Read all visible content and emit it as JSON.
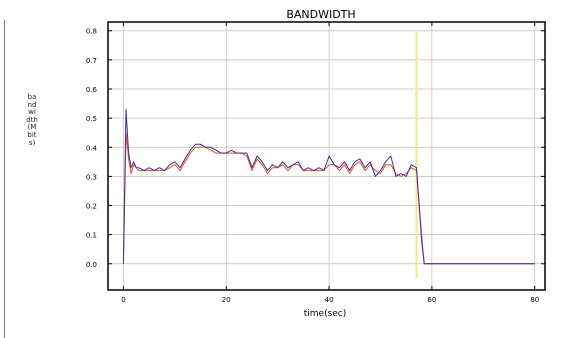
{
  "chart_data": {
    "type": "line",
    "title": "BANDWIDTH",
    "xlabel": "time(sec)",
    "ylabel": "bandwidth(Mbits)",
    "xlim": [
      -3,
      82
    ],
    "ylim": [
      -0.09,
      0.83
    ],
    "xticks": [
      0,
      20,
      40,
      60,
      80
    ],
    "yticks": [
      0.0,
      0.1,
      0.2,
      0.3,
      0.4,
      0.5,
      0.6,
      0.7,
      0.8
    ],
    "xtick_labels": [
      "0",
      "20",
      "40",
      "60",
      "80"
    ],
    "ytick_labels": [
      "0.0",
      "0.1",
      "0.2",
      "0.3",
      "0.4",
      "0.5",
      "0.6",
      "0.7",
      "0.8"
    ],
    "grid": true,
    "legend": "none",
    "series": [
      {
        "color": "#e8511c",
        "x": [
          0,
          0.5,
          1,
          1.5,
          2,
          2.5,
          3,
          4,
          5,
          6,
          7,
          8,
          9,
          10,
          11,
          12,
          13,
          14,
          15,
          16,
          17,
          18,
          19,
          20,
          21,
          22,
          23,
          24,
          25,
          26,
          27,
          28,
          29,
          30,
          31,
          32,
          33,
          34,
          35,
          36,
          37,
          38,
          39,
          40,
          41,
          42,
          43,
          44,
          45,
          46,
          47,
          48,
          49,
          50,
          51,
          52,
          53,
          54,
          55,
          56,
          57,
          58,
          58.5,
          60,
          70,
          80
        ],
        "y": [
          0.0,
          0.45,
          0.36,
          0.31,
          0.34,
          0.33,
          0.32,
          0.32,
          0.32,
          0.32,
          0.32,
          0.32,
          0.33,
          0.34,
          0.32,
          0.35,
          0.38,
          0.4,
          0.4,
          0.4,
          0.39,
          0.38,
          0.38,
          0.38,
          0.38,
          0.38,
          0.38,
          0.37,
          0.32,
          0.36,
          0.34,
          0.31,
          0.33,
          0.33,
          0.34,
          0.32,
          0.34,
          0.34,
          0.32,
          0.32,
          0.32,
          0.32,
          0.32,
          0.34,
          0.34,
          0.32,
          0.34,
          0.31,
          0.34,
          0.35,
          0.32,
          0.34,
          0.32,
          0.31,
          0.34,
          0.34,
          0.31,
          0.3,
          0.31,
          0.33,
          0.32,
          0.1,
          0.0,
          0.0,
          0.0,
          0.0
        ]
      },
      {
        "color": "#3b2fa0",
        "x": [
          0,
          0.5,
          1,
          1.5,
          2,
          2.5,
          3,
          4,
          5,
          6,
          7,
          8,
          9,
          10,
          11,
          12,
          13,
          14,
          15,
          16,
          17,
          18,
          19,
          20,
          21,
          22,
          23,
          24,
          25,
          26,
          27,
          28,
          29,
          30,
          31,
          32,
          33,
          34,
          35,
          36,
          37,
          38,
          39,
          40,
          41,
          42,
          43,
          44,
          45,
          46,
          47,
          48,
          49,
          50,
          51,
          52,
          53,
          54,
          55,
          56,
          57,
          58,
          58.5,
          60,
          70,
          80
        ],
        "y": [
          0.0,
          0.53,
          0.38,
          0.33,
          0.35,
          0.33,
          0.33,
          0.32,
          0.33,
          0.32,
          0.33,
          0.32,
          0.34,
          0.35,
          0.33,
          0.36,
          0.39,
          0.41,
          0.41,
          0.4,
          0.4,
          0.39,
          0.38,
          0.38,
          0.39,
          0.38,
          0.38,
          0.38,
          0.33,
          0.37,
          0.35,
          0.32,
          0.34,
          0.33,
          0.35,
          0.33,
          0.34,
          0.35,
          0.32,
          0.33,
          0.32,
          0.33,
          0.32,
          0.37,
          0.34,
          0.33,
          0.35,
          0.32,
          0.35,
          0.36,
          0.33,
          0.35,
          0.3,
          0.32,
          0.35,
          0.37,
          0.3,
          0.31,
          0.3,
          0.34,
          0.33,
          0.08,
          0.0,
          0.0,
          0.0,
          0.0
        ]
      }
    ],
    "annotations": [
      {
        "type": "vertical_line",
        "x": 57,
        "y_range": [
          -0.05,
          0.8
        ],
        "color": "#f2ea8a"
      }
    ]
  }
}
